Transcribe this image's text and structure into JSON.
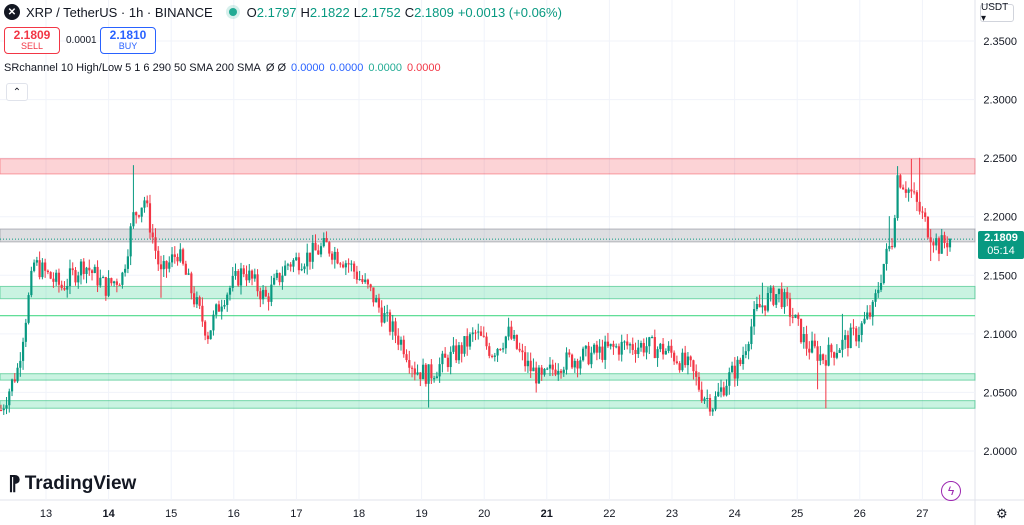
{
  "header": {
    "symbol": "XRP / TetherUS · 1h · BINANCE",
    "ohlc": [
      {
        "k": "O",
        "v": "2.1797"
      },
      {
        "k": "H",
        "v": "2.1822"
      },
      {
        "k": "L",
        "v": "2.1752"
      },
      {
        "k": "C",
        "v": "2.1809"
      }
    ],
    "change": "+0.0013 (+0.06%)"
  },
  "trade": {
    "sell_price": "2.1809",
    "sell_label": "SELL",
    "spread": "0.0001",
    "buy_price": "2.1810",
    "buy_label": "BUY"
  },
  "indicator": {
    "name": "SRchannel 10 High/Low 5 1 6 290 50 SMA 200 SMA",
    "symbols": "Ø Ø",
    "values": [
      {
        "v": "0.0000",
        "color": "#2962ff"
      },
      {
        "v": "0.0000",
        "color": "#2962ff"
      },
      {
        "v": "0.0000",
        "color": "#22ab94"
      },
      {
        "v": "0.0000",
        "color": "#f23645"
      }
    ]
  },
  "collapse_glyph": "⌃",
  "currency": "USDT ▾",
  "watermark": "TradingView",
  "price_tag": {
    "price": "2.1809",
    "countdown": "05:14"
  },
  "colors": {
    "up": "#089981",
    "down": "#f23645",
    "accent": "#2962ff"
  },
  "chart_data": {
    "type": "candlestick",
    "ylim": [
      1.985,
      2.37
    ],
    "y_ticks": [
      "2.0000",
      "2.0500",
      "2.1000",
      "2.1500",
      "2.2000",
      "2.2500",
      "2.3000",
      "2.3500"
    ],
    "x_ticks": [
      "13",
      "14",
      "15",
      "16",
      "17",
      "18",
      "19",
      "20",
      "21",
      "22",
      "23",
      "24",
      "25",
      "26",
      "27"
    ],
    "bold_x_ticks": [
      "14",
      "21"
    ],
    "sr_zones": [
      {
        "low": 2.2365,
        "high": 2.2495,
        "kind": "resistance"
      },
      {
        "low": 2.1785,
        "high": 2.1895,
        "kind": "current"
      },
      {
        "low": 2.13,
        "high": 2.1405,
        "kind": "support"
      },
      {
        "low": 2.0605,
        "high": 2.066,
        "kind": "support"
      },
      {
        "low": 2.0365,
        "high": 2.043,
        "kind": "support"
      }
    ],
    "sr_line": 2.1155,
    "last_price": 2.1809,
    "candle_count": 345,
    "key_points": [
      {
        "i": 0,
        "p": 2.035
      },
      {
        "i": 6,
        "p": 2.07
      },
      {
        "i": 12,
        "p": 2.16
      },
      {
        "i": 22,
        "p": 2.14
      },
      {
        "i": 30,
        "p": 2.16
      },
      {
        "i": 38,
        "p": 2.14
      },
      {
        "i": 44,
        "p": 2.15
      },
      {
        "i": 48,
        "p": 2.2
      },
      {
        "i": 52,
        "p": 2.215
      },
      {
        "i": 58,
        "p": 2.15
      },
      {
        "i": 64,
        "p": 2.17
      },
      {
        "i": 70,
        "p": 2.13
      },
      {
        "i": 75,
        "p": 2.1
      },
      {
        "i": 80,
        "p": 2.13
      },
      {
        "i": 88,
        "p": 2.155
      },
      {
        "i": 96,
        "p": 2.13
      },
      {
        "i": 104,
        "p": 2.16
      },
      {
        "i": 110,
        "p": 2.165
      },
      {
        "i": 118,
        "p": 2.175
      },
      {
        "i": 126,
        "p": 2.16
      },
      {
        "i": 134,
        "p": 2.135
      },
      {
        "i": 140,
        "p": 2.11
      },
      {
        "i": 146,
        "p": 2.09
      },
      {
        "i": 150,
        "p": 2.07
      },
      {
        "i": 155,
        "p": 2.065
      },
      {
        "i": 160,
        "p": 2.075
      },
      {
        "i": 166,
        "p": 2.085
      },
      {
        "i": 172,
        "p": 2.1
      },
      {
        "i": 178,
        "p": 2.085
      },
      {
        "i": 184,
        "p": 2.1
      },
      {
        "i": 190,
        "p": 2.075
      },
      {
        "i": 196,
        "p": 2.06
      },
      {
        "i": 202,
        "p": 2.075
      },
      {
        "i": 210,
        "p": 2.08
      },
      {
        "i": 218,
        "p": 2.085
      },
      {
        "i": 226,
        "p": 2.09
      },
      {
        "i": 234,
        "p": 2.09
      },
      {
        "i": 242,
        "p": 2.085
      },
      {
        "i": 250,
        "p": 2.07
      },
      {
        "i": 254,
        "p": 2.05
      },
      {
        "i": 258,
        "p": 2.04
      },
      {
        "i": 263,
        "p": 2.06
      },
      {
        "i": 268,
        "p": 2.075
      },
      {
        "i": 271,
        "p": 2.1
      },
      {
        "i": 274,
        "p": 2.12
      },
      {
        "i": 278,
        "p": 2.13
      },
      {
        "i": 282,
        "p": 2.135
      },
      {
        "i": 287,
        "p": 2.115
      },
      {
        "i": 292,
        "p": 2.09
      },
      {
        "i": 298,
        "p": 2.08
      },
      {
        "i": 304,
        "p": 2.09
      },
      {
        "i": 310,
        "p": 2.1
      },
      {
        "i": 316,
        "p": 2.12
      },
      {
        "i": 320,
        "p": 2.16
      },
      {
        "i": 323,
        "p": 2.18
      },
      {
        "i": 325,
        "p": 2.235
      },
      {
        "i": 330,
        "p": 2.22
      },
      {
        "i": 336,
        "p": 2.19
      },
      {
        "i": 340,
        "p": 2.175
      },
      {
        "i": 344,
        "p": 2.1809
      }
    ]
  }
}
